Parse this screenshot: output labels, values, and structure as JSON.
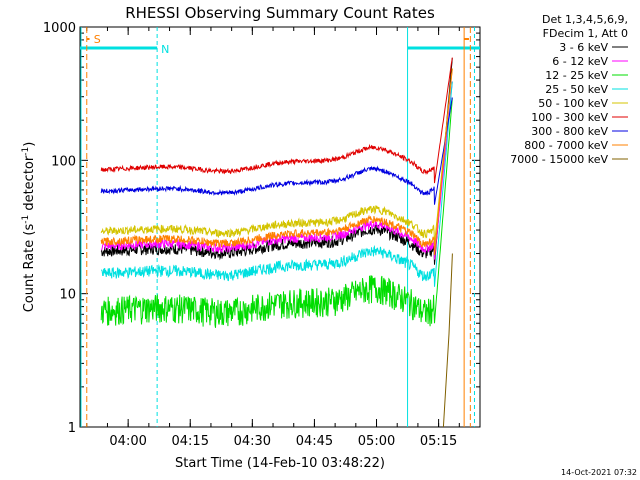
{
  "chart_data": {
    "type": "line",
    "title": "RHESSI Observing Summary Count Rates",
    "xlabel": "Start Time (14-Feb-10 03:48:22)",
    "ylabel": "Count Rate (s",
    "ylabel_sup1": "-1",
    "ylabel_mid": " detector",
    "ylabel_sup2": "-1",
    "ylabel_end": ")",
    "yscale": "log",
    "ylim": [
      1,
      1000
    ],
    "xlim": [
      "03:48:22",
      "05:25:00"
    ],
    "x_ticks": [
      "04:00",
      "04:15",
      "04:30",
      "04:45",
      "05:00",
      "05:15"
    ],
    "y_ticks": [
      "1",
      "10",
      "100",
      "1000"
    ],
    "legend_header": [
      "Det 1,3,4,5,6,9,",
      "FDecim 1, Att 0"
    ],
    "legend_position": "right",
    "footer_date": "14-Oct-2021 07:32",
    "flags": {
      "saa_label": "S",
      "night_label": "N",
      "night_intervals": [
        [
          "03:48:22",
          "04:07:00"
        ],
        [
          "05:07:30",
          "05:25:00"
        ]
      ],
      "saa_intervals": [
        [
          "03:50:00",
          "03:51:00"
        ],
        [
          "05:21:00",
          "05:23:00"
        ]
      ],
      "night_color": "#00e0e0",
      "saa_color": "#ff8000"
    },
    "series": [
      {
        "name": "3 - 6 keV",
        "color": "#000000"
      },
      {
        "name": "6 - 12 keV",
        "color": "#ff00ff"
      },
      {
        "name": "12 - 25 keV",
        "color": "#00dd00"
      },
      {
        "name": "25 - 50 keV",
        "color": "#00e0e0"
      },
      {
        "name": "50 - 100 keV",
        "color": "#d4c400"
      },
      {
        "name": "100 - 300 keV",
        "color": "#e00000"
      },
      {
        "name": "300 - 800 keV",
        "color": "#0000e0"
      },
      {
        "name": "800 - 7000 keV",
        "color": "#ff8000"
      },
      {
        "name": "7000 - 15000 keV",
        "color": "#806000"
      }
    ]
  }
}
